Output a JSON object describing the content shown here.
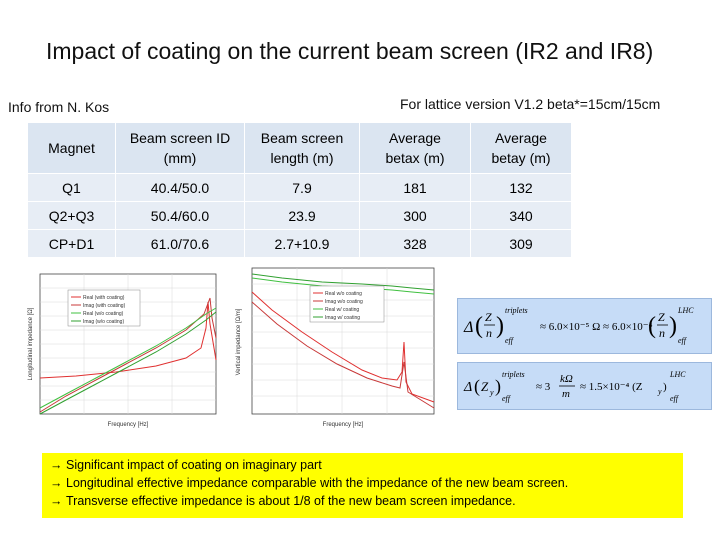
{
  "slide": {
    "title": "Impact of coating on the current beam screen (IR2 and IR8)",
    "source": "Info from N. Kos",
    "lattice_note": "For lattice version V1.2 beta*=15cm/15cm"
  },
  "table": {
    "headers": [
      [
        "Magnet"
      ],
      [
        "Beam screen ID",
        "(mm)"
      ],
      [
        "Beam screen",
        "length (m)"
      ],
      [
        "Average",
        "betax (m)"
      ],
      [
        "Average",
        "betay (m)"
      ]
    ],
    "rows": [
      [
        "Q1",
        "40.4/50.0",
        "7.9",
        "181",
        "132"
      ],
      [
        "Q2+Q3",
        "50.4/60.0",
        "23.9",
        "300",
        "340"
      ],
      [
        "CP+D1",
        "61.0/70.6",
        "2.7+10.9",
        "328",
        "309"
      ]
    ]
  },
  "plots": {
    "left": {
      "legend": [
        "Real (with coating)",
        "Imag (with coating)",
        "Real (w/o coating)",
        "Imag (w/o coating)"
      ],
      "colors": [
        "#e03030",
        "#d04040",
        "#40c040",
        "#30a030"
      ],
      "xlabel": "Frequency [Hz]",
      "ylabel": "Longitudinal impedance [Ω]"
    },
    "right": {
      "legend": [
        "Real w/o coating",
        "Imag w/o coating",
        "Real w/ coating",
        "Imag w/ coating"
      ],
      "colors": [
        "#e03030",
        "#d04040",
        "#40c040",
        "#30a030"
      ],
      "xlabel": "Frequency [Hz]",
      "ylabel": "Vertical impedance [Ω/m]"
    }
  },
  "formulas": {
    "longitudinal": {
      "lhs_sup": "triplets",
      "lhs_sub": "eff",
      "relation": "≈ 6.0×10⁻⁵ Ω ≈ 6.0×10⁻⁴",
      "rhs_sup": "LHC",
      "rhs_sub": "eff"
    },
    "transverse": {
      "lhs_sup": "triplets",
      "lhs_sub": "eff",
      "relation": "≈ 3",
      "fraction_num": "kΩ",
      "fraction_den": "m",
      "relation2": "≈ 1.5×10⁻⁴ (Z",
      "rhs_sup": "LHC",
      "rhs_sub": "eff"
    }
  },
  "conclusions": [
    "Significant impact of coating on imaginary part",
    "Longitudinal effective impedance comparable with the impedance of the new beam screen.",
    "Transverse effective impedance is about 1/8 of the new beam screen impedance."
  ]
}
